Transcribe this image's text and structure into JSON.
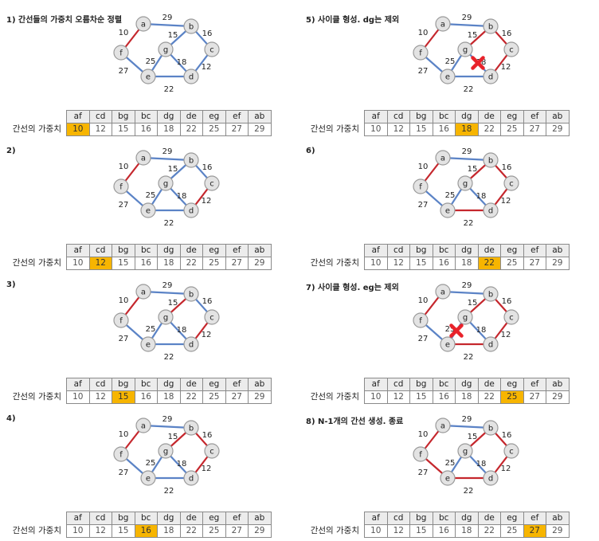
{
  "colors": {
    "blue": "#5b83c6",
    "red": "#c5272d",
    "node_fill": "#e3e3e3",
    "node_stroke": "#9a9a9a",
    "highlight": "#f7b500",
    "cross": "#e8222a"
  },
  "table": {
    "row_label": "간선의 가중치",
    "edges": [
      "af",
      "cd",
      "bg",
      "bc",
      "dg",
      "de",
      "eg",
      "ef",
      "ab"
    ],
    "weights": [
      "10",
      "12",
      "15",
      "16",
      "18",
      "22",
      "25",
      "27",
      "29"
    ]
  },
  "graph": {
    "nodes": [
      "a",
      "b",
      "c",
      "d",
      "e",
      "f",
      "g"
    ],
    "edges": [
      {
        "id": "ab",
        "w": "29"
      },
      {
        "id": "af",
        "w": "10"
      },
      {
        "id": "bg",
        "w": "15"
      },
      {
        "id": "bc",
        "w": "16"
      },
      {
        "id": "cd",
        "w": "12"
      },
      {
        "id": "dg",
        "w": "18"
      },
      {
        "id": "eg",
        "w": "25"
      },
      {
        "id": "ef",
        "w": "27"
      },
      {
        "id": "de",
        "w": "22"
      }
    ]
  },
  "panels": [
    {
      "title": "1) 간선들의 가중치 오름차순 정렬",
      "highlight": "af",
      "red": [
        "af"
      ],
      "cross": null
    },
    {
      "title": "2)",
      "highlight": "cd",
      "red": [
        "af",
        "cd"
      ],
      "cross": null
    },
    {
      "title": "3)",
      "highlight": "bg",
      "red": [
        "af",
        "cd",
        "bg"
      ],
      "cross": null
    },
    {
      "title": "4)",
      "highlight": "bc",
      "red": [
        "af",
        "cd",
        "bg",
        "bc"
      ],
      "cross": null
    },
    {
      "title": "5) 사이클 형성. dg는 제외",
      "highlight": "dg",
      "red": [
        "af",
        "cd",
        "bg",
        "bc"
      ],
      "cross": "dg"
    },
    {
      "title": "6)",
      "highlight": "de",
      "red": [
        "af",
        "cd",
        "bg",
        "bc",
        "de"
      ],
      "cross": null
    },
    {
      "title": "7) 사이클 형성. eg는 제외",
      "highlight": "eg",
      "red": [
        "af",
        "cd",
        "bg",
        "bc",
        "de"
      ],
      "cross": "eg"
    },
    {
      "title": "8) N-1개의 간선 생성. 종료",
      "highlight": "ef",
      "red": [
        "af",
        "cd",
        "bg",
        "bc",
        "de",
        "ef"
      ],
      "cross": null
    }
  ]
}
